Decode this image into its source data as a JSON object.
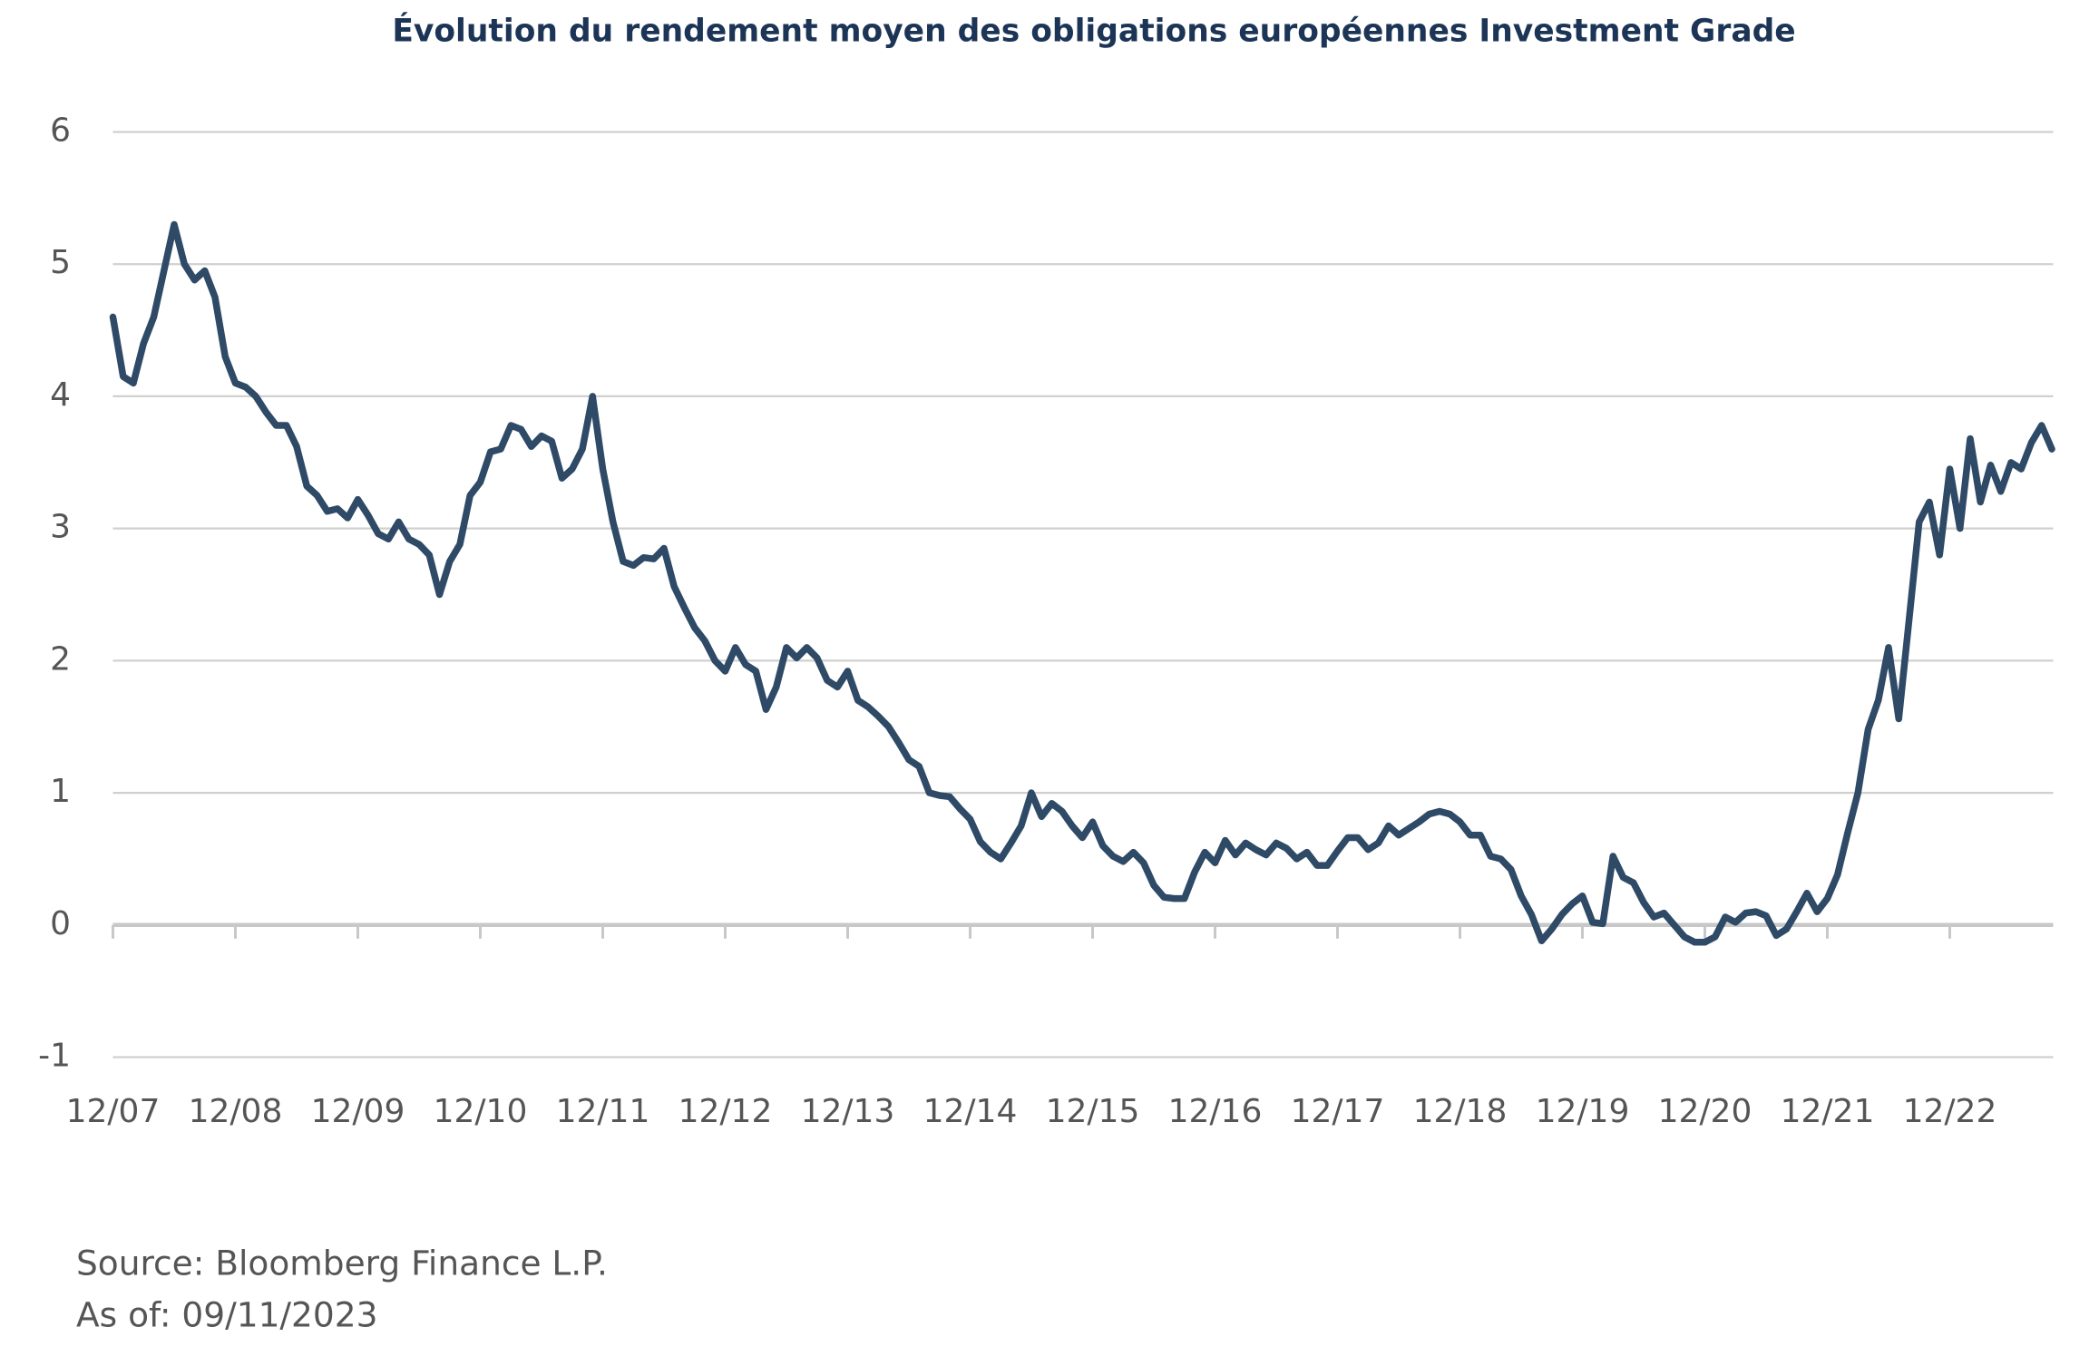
{
  "chart_data": {
    "type": "line",
    "title": "Évolution du rendement moyen des obligations européennes Investment Grade",
    "notes": [
      "Source: Bloomberg Finance L.P.",
      "As of: 09/11/2023"
    ],
    "categories": [
      "12/07",
      null,
      null,
      null,
      null,
      null,
      null,
      null,
      null,
      null,
      null,
      null,
      "12/08",
      null,
      null,
      null,
      null,
      null,
      null,
      null,
      null,
      null,
      null,
      null,
      "12/09",
      null,
      null,
      null,
      null,
      null,
      null,
      null,
      null,
      null,
      null,
      null,
      "12/10",
      null,
      null,
      null,
      null,
      null,
      null,
      null,
      null,
      null,
      null,
      null,
      "12/11",
      null,
      null,
      null,
      null,
      null,
      null,
      null,
      null,
      null,
      null,
      null,
      "12/12",
      null,
      null,
      null,
      null,
      null,
      null,
      null,
      null,
      null,
      null,
      null,
      "12/13",
      null,
      null,
      null,
      null,
      null,
      null,
      null,
      null,
      null,
      null,
      null,
      "12/14",
      null,
      null,
      null,
      null,
      null,
      null,
      null,
      null,
      null,
      null,
      null,
      "12/15",
      null,
      null,
      null,
      null,
      null,
      null,
      null,
      null,
      null,
      null,
      null,
      "12/16",
      null,
      null,
      null,
      null,
      null,
      null,
      null,
      null,
      null,
      null,
      null,
      "12/17",
      null,
      null,
      null,
      null,
      null,
      null,
      null,
      null,
      null,
      null,
      null,
      "12/18",
      null,
      null,
      null,
      null,
      null,
      null,
      null,
      null,
      null,
      null,
      null,
      "12/19",
      null,
      null,
      null,
      null,
      null,
      null,
      null,
      null,
      null,
      null,
      null,
      "12/20",
      null,
      null,
      null,
      null,
      null,
      null,
      null,
      null,
      null,
      null,
      null,
      "12/21",
      null,
      null,
      null,
      null,
      null,
      null,
      null,
      null,
      null,
      null,
      null,
      "12/22",
      null,
      null,
      null,
      null,
      null,
      null,
      null,
      null,
      null,
      null
    ],
    "series": [
      {
        "color": "#2e4a66",
        "values": [
          4.6,
          4.15,
          4.1,
          4.4,
          4.6,
          4.95,
          5.3,
          5.0,
          4.88,
          4.95,
          4.75,
          4.3,
          4.1,
          4.07,
          4.0,
          3.88,
          3.78,
          3.78,
          3.62,
          3.32,
          3.25,
          3.13,
          3.15,
          3.08,
          3.22,
          3.1,
          2.96,
          2.92,
          3.05,
          2.92,
          2.88,
          2.8,
          2.5,
          2.75,
          2.88,
          3.25,
          3.35,
          3.58,
          3.6,
          3.78,
          3.75,
          3.62,
          3.7,
          3.66,
          3.38,
          3.45,
          3.6,
          4.0,
          3.45,
          3.05,
          2.75,
          2.72,
          2.78,
          2.77,
          2.85,
          2.56,
          2.4,
          2.25,
          2.15,
          2.0,
          1.92,
          2.1,
          1.97,
          1.92,
          1.63,
          1.8,
          2.1,
          2.02,
          2.1,
          2.02,
          1.85,
          1.8,
          1.92,
          1.7,
          1.65,
          1.58,
          1.5,
          1.38,
          1.25,
          1.2,
          1.0,
          0.98,
          0.97,
          0.88,
          0.8,
          0.63,
          0.55,
          0.5,
          0.62,
          0.75,
          1.0,
          0.82,
          0.92,
          0.86,
          0.75,
          0.66,
          0.78,
          0.6,
          0.52,
          0.48,
          0.55,
          0.47,
          0.3,
          0.21,
          0.2,
          0.2,
          0.4,
          0.55,
          0.47,
          0.64,
          0.53,
          0.62,
          0.57,
          0.53,
          0.62,
          0.58,
          0.5,
          0.55,
          0.45,
          0.45,
          0.56,
          0.66,
          0.66,
          0.57,
          0.62,
          0.75,
          0.68,
          0.73,
          0.78,
          0.84,
          0.86,
          0.84,
          0.78,
          0.68,
          0.68,
          0.52,
          0.5,
          0.42,
          0.22,
          0.08,
          -0.12,
          -0.03,
          0.08,
          0.16,
          0.22,
          0.02,
          0.01,
          0.52,
          0.36,
          0.32,
          0.17,
          0.06,
          0.09,
          0.0,
          -0.09,
          -0.13,
          -0.13,
          -0.09,
          0.06,
          0.02,
          0.09,
          0.1,
          0.07,
          -0.08,
          -0.03,
          0.1,
          0.24,
          0.1,
          0.2,
          0.38,
          0.7,
          1.0,
          1.48,
          1.7,
          2.1,
          1.56,
          2.3,
          3.05,
          3.2,
          2.8,
          3.45,
          3.0,
          3.68,
          3.2,
          3.48,
          3.28,
          3.5,
          3.45,
          3.65,
          3.78,
          3.6
        ]
      }
    ],
    "ylim": [
      -1,
      6
    ],
    "yticks": [
      -1,
      0,
      1,
      2,
      3,
      4,
      5,
      6
    ],
    "grid": true
  }
}
